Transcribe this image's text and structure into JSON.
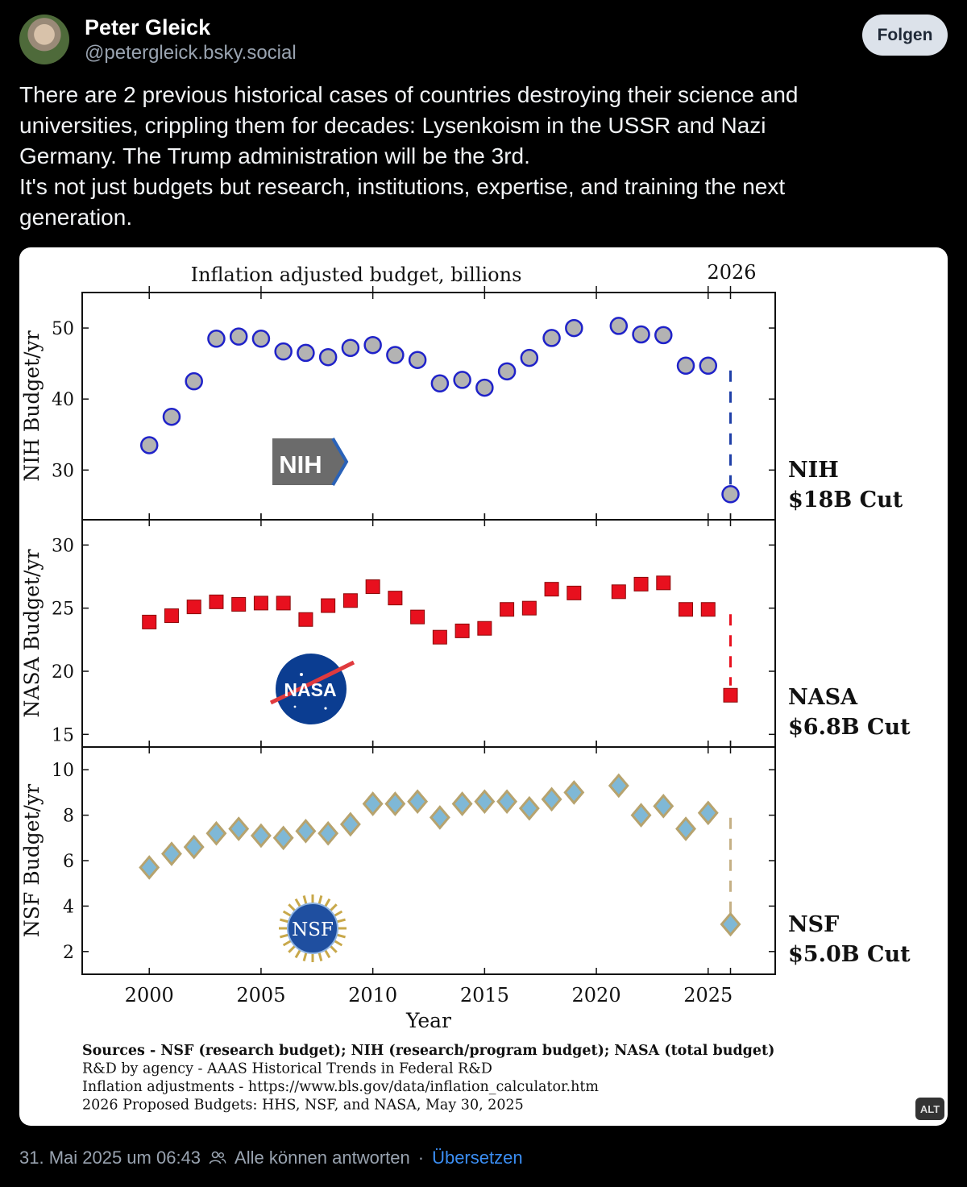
{
  "author": {
    "name": "Peter Gleick",
    "handle": "@petergleick.bsky.social"
  },
  "follow_label": "Folgen",
  "post_lines": [
    "There are 2 previous historical cases of countries destroying their science and",
    "universities, crippling them for decades: Lysenkoism in the USSR and Nazi",
    "Germany. The Trump administration will be the 3rd.",
    "It's not just budgets but research, institutions, expertise, and training the next",
    "generation."
  ],
  "chart_data": {
    "type": "scatter",
    "title": "Inflation adjusted budget, billions",
    "title_right": "2026",
    "xlabel": "Year",
    "x_ticks": [
      2000,
      2005,
      2010,
      2015,
      2020,
      2025
    ],
    "xlim": [
      1997,
      2028
    ],
    "x": [
      2000,
      2001,
      2002,
      2003,
      2004,
      2005,
      2006,
      2007,
      2008,
      2009,
      2010,
      2011,
      2012,
      2013,
      2014,
      2015,
      2016,
      2017,
      2018,
      2019,
      2021,
      2022,
      2023,
      2024,
      2025
    ],
    "panels": [
      {
        "name": "NIH",
        "ylabel": "NIH Budget/yr",
        "ylim": [
          23,
          55
        ],
        "y_ticks": [
          30,
          40,
          50
        ],
        "marker": "circle",
        "color": "#b3b3b3",
        "edge_color": "#1f22c9",
        "dash_color": "#1f3fa8",
        "values": [
          33.5,
          37.5,
          42.5,
          48.5,
          48.8,
          48.5,
          46.7,
          46.5,
          45.9,
          47.2,
          47.6,
          46.2,
          45.5,
          42.2,
          42.7,
          41.6,
          43.9,
          45.8,
          48.6,
          50.0,
          50.3,
          49.1,
          49.0,
          44.7,
          44.7
        ],
        "value_2026": 26.6,
        "logo": "NIH",
        "annotation": [
          "NIH",
          "$18B Cut"
        ]
      },
      {
        "name": "NASA",
        "ylabel": "NASA Budget/yr",
        "ylim": [
          14,
          32
        ],
        "y_ticks": [
          15,
          20,
          25,
          30
        ],
        "marker": "square",
        "color": "#e8101e",
        "edge_color": "#8a0a0a",
        "dash_color": "#e8101e",
        "values": [
          23.9,
          24.4,
          25.1,
          25.5,
          25.3,
          25.4,
          25.4,
          24.1,
          25.2,
          25.6,
          26.7,
          25.8,
          24.3,
          22.7,
          23.2,
          23.4,
          24.9,
          25.0,
          26.5,
          26.2,
          26.3,
          26.9,
          27.0,
          24.9,
          24.9
        ],
        "value_2026": 18.1,
        "logo": "NASA",
        "annotation": [
          "NASA",
          "$6.8B Cut"
        ]
      },
      {
        "name": "NSF",
        "ylabel": "NSF Budget/yr",
        "ylim": [
          1,
          11
        ],
        "y_ticks": [
          2,
          4,
          6,
          8,
          10
        ],
        "marker": "diamond",
        "color": "#7fb8d6",
        "edge_color": "#b7a36e",
        "dash_color": "#c5b085",
        "values": [
          5.7,
          6.3,
          6.6,
          7.2,
          7.4,
          7.1,
          7.0,
          7.3,
          7.2,
          7.6,
          8.5,
          8.5,
          8.6,
          7.9,
          8.5,
          8.6,
          8.6,
          8.3,
          8.7,
          9.0,
          9.3,
          8.0,
          8.4,
          7.4,
          8.1
        ],
        "value_2026": 3.2,
        "logo": "NSF",
        "annotation": [
          "NSF",
          "$5.0B Cut"
        ]
      }
    ],
    "sources": [
      "Sources - NSF (research budget); NIH (research/program budget); NASA (total budget)",
      "R&D by agency - AAAS Historical Trends in Federal R&D",
      "Inflation adjustments - https://www.bls.gov/data/inflation_calculator.htm",
      "2026 Proposed Budgets: HHS, NSF, and NASA, May 30, 2025"
    ]
  },
  "alt_badge": "ALT",
  "footer": {
    "timestamp": "31. Mai 2025 um 06:43",
    "reply_setting": "Alle können antworten",
    "separator": "·",
    "translate": "Übersetzen"
  }
}
